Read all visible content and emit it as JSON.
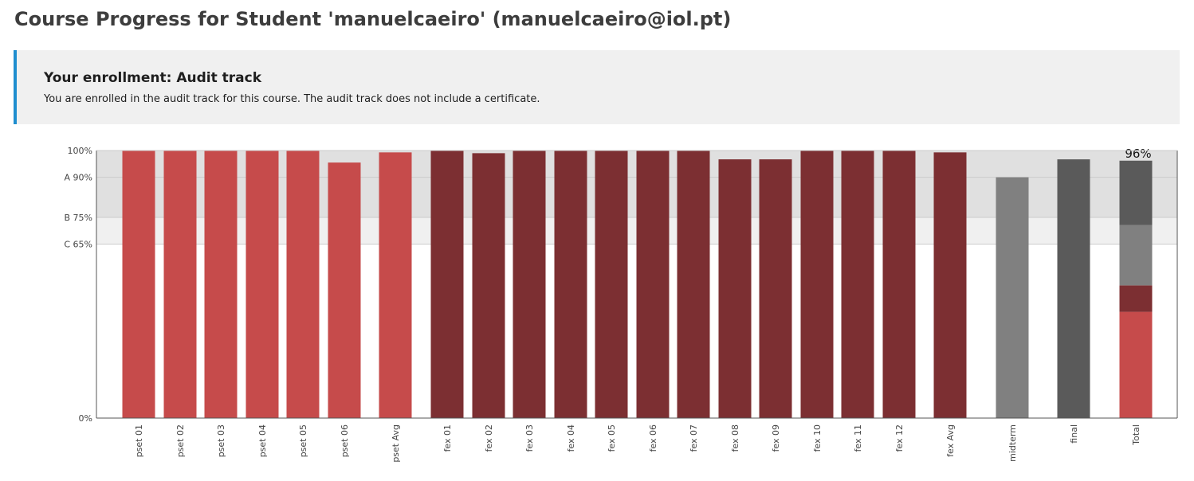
{
  "page": {
    "title": "Course Progress for Student 'manuelcaeiro' (manuelcaeiro@iol.pt)"
  },
  "enrollment": {
    "title": "Your enrollment: Audit track",
    "message": "You are enrolled in the audit track for this course. The audit track does not include a certificate."
  },
  "chart_data": {
    "type": "bar",
    "ylim": [
      0,
      100
    ],
    "grade_cutoffs": [
      {
        "label": "A 90%",
        "value": 90
      },
      {
        "label": "B 75%",
        "value": 75
      },
      {
        "label": "C 65%",
        "value": 65
      }
    ],
    "y_ticks": [
      {
        "label": "100%",
        "value": 100
      },
      {
        "label": "0%",
        "value": 0
      }
    ],
    "bars": [
      {
        "label": "pset 01",
        "value": 100,
        "color": "#c64b4b"
      },
      {
        "label": "pset 02",
        "value": 100,
        "color": "#c64b4b"
      },
      {
        "label": "pset 03",
        "value": 100,
        "color": "#c64b4b"
      },
      {
        "label": "pset 04",
        "value": 100,
        "color": "#c64b4b"
      },
      {
        "label": "pset 05",
        "value": 100,
        "color": "#c64b4b"
      },
      {
        "label": "pset 06",
        "value": 95.5,
        "color": "#c64b4b"
      },
      {
        "label": "pset Avg",
        "value": 99.3,
        "color": "#c64b4b"
      },
      {
        "label": "fex 01",
        "value": 100,
        "color": "#7c2f32"
      },
      {
        "label": "fex 02",
        "value": 99,
        "color": "#7c2f32"
      },
      {
        "label": "fex 03",
        "value": 100,
        "color": "#7c2f32"
      },
      {
        "label": "fex 04",
        "value": 100,
        "color": "#7c2f32"
      },
      {
        "label": "fex 05",
        "value": 100,
        "color": "#7c2f32"
      },
      {
        "label": "fex 06",
        "value": 100,
        "color": "#7c2f32"
      },
      {
        "label": "fex 07",
        "value": 100,
        "color": "#7c2f32"
      },
      {
        "label": "fex 08",
        "value": 96.7,
        "color": "#7c2f32"
      },
      {
        "label": "fex 09",
        "value": 96.7,
        "color": "#7c2f32"
      },
      {
        "label": "fex 10",
        "value": 100,
        "color": "#7c2f32"
      },
      {
        "label": "fex 11",
        "value": 100,
        "color": "#7c2f32"
      },
      {
        "label": "fex 12",
        "value": 100,
        "color": "#7c2f32"
      },
      {
        "label": "fex Avg",
        "value": 99.3,
        "color": "#7c2f32"
      },
      {
        "label": "midterm",
        "value": 90,
        "color": "#808080"
      },
      {
        "label": "final",
        "value": 96.7,
        "color": "#5a5a5a"
      }
    ],
    "total": {
      "label": "Total",
      "value_label": "96%",
      "segments": [
        {
          "name": "pset",
          "value": 39.7,
          "color": "#c64b4b"
        },
        {
          "name": "fex",
          "value": 9.9,
          "color": "#7c2f32"
        },
        {
          "name": "midterm",
          "value": 22.5,
          "color": "#808080"
        },
        {
          "name": "final",
          "value": 24.1,
          "color": "#5a5a5a"
        }
      ]
    },
    "colors": {
      "band_top": "#e0e0e0",
      "band_mid": "#f0f0f0",
      "axis": "#555555",
      "gridline": "#cccccc",
      "label": "#444444"
    }
  }
}
